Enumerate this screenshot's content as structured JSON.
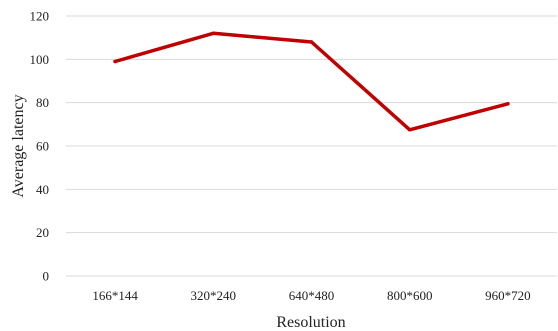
{
  "chart_data": {
    "type": "line",
    "title": "",
    "xlabel": "Resolution",
    "ylabel": "Average latency",
    "categories": [
      "166*144",
      "320*240",
      "640*480",
      "800*600",
      "960*720"
    ],
    "ylim": [
      0,
      120
    ],
    "yticks": [
      0,
      20,
      40,
      60,
      80,
      100,
      120
    ],
    "grid": true,
    "legend": "none",
    "series": [
      {
        "values": [
          99,
          112,
          108,
          67.5,
          79.5
        ],
        "color": "#c00000"
      }
    ]
  }
}
